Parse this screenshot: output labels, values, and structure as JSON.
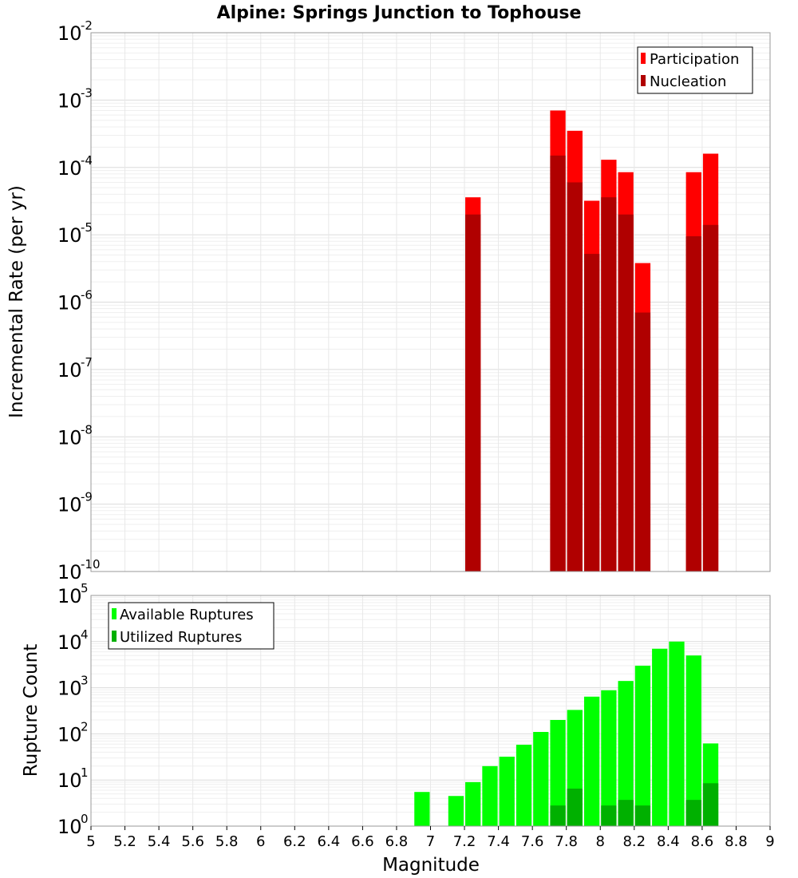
{
  "chart_data": [
    {
      "type": "bar",
      "title": "Alpine: Springs Junction to Tophouse",
      "xlabel": "",
      "ylabel": "Incremental Rate (per yr)",
      "yscale": "log",
      "xlim": [
        5,
        9
      ],
      "ylim": [
        1e-10,
        0.01
      ],
      "grid": true,
      "legend_position": "top-right",
      "series": [
        {
          "name": "Participation",
          "color": "#ff0000",
          "x": [
            7.25,
            7.75,
            7.85,
            7.95,
            8.05,
            8.15,
            8.25,
            8.55,
            8.65
          ],
          "values": [
            3.6e-05,
            0.0007,
            0.00035,
            3.2e-05,
            0.00013,
            8.5e-05,
            3.8e-06,
            8.5e-05,
            0.00016
          ]
        },
        {
          "name": "Nucleation",
          "color": "#b00000",
          "x": [
            7.25,
            7.75,
            7.85,
            7.95,
            8.05,
            8.15,
            8.25,
            8.55,
            8.65
          ],
          "values": [
            2e-05,
            0.00015,
            6e-05,
            5.2e-06,
            3.6e-05,
            2e-05,
            7e-07,
            9.5e-06,
            1.4e-05
          ]
        }
      ]
    },
    {
      "type": "bar",
      "title": "",
      "xlabel": "Magnitude",
      "ylabel": "Rupture Count",
      "yscale": "log",
      "xlim": [
        5,
        9
      ],
      "ylim": [
        1,
        100000
      ],
      "grid": true,
      "legend_position": "top-left",
      "x_ticks": [
        "5",
        "5.2",
        "5.4",
        "5.6",
        "5.8",
        "6",
        "6.2",
        "6.4",
        "6.6",
        "6.8",
        "7",
        "7.2",
        "7.4",
        "7.6",
        "7.8",
        "8",
        "8.2",
        "8.4",
        "8.6",
        "8.8",
        "9"
      ],
      "series": [
        {
          "name": "Available Ruptures",
          "color": "#00ff00",
          "x": [
            6.95,
            7.15,
            7.25,
            7.35,
            7.45,
            7.55,
            7.65,
            7.75,
            7.85,
            7.95,
            8.05,
            8.15,
            8.25,
            8.35,
            8.45,
            8.55,
            8.65
          ],
          "values": [
            5.5,
            4.5,
            9,
            20,
            32,
            58,
            110,
            200,
            330,
            640,
            880,
            1400,
            3000,
            7000,
            10000,
            5000,
            62
          ]
        },
        {
          "name": "Utilized Ruptures",
          "color": "#00b000",
          "x": [
            7.25,
            7.75,
            7.85,
            7.95,
            8.05,
            8.15,
            8.25,
            8.55,
            8.65
          ],
          "values": [
            1,
            2.8,
            6.5,
            1,
            2.8,
            3.7,
            2.8,
            3.7,
            8.5
          ]
        }
      ]
    }
  ]
}
